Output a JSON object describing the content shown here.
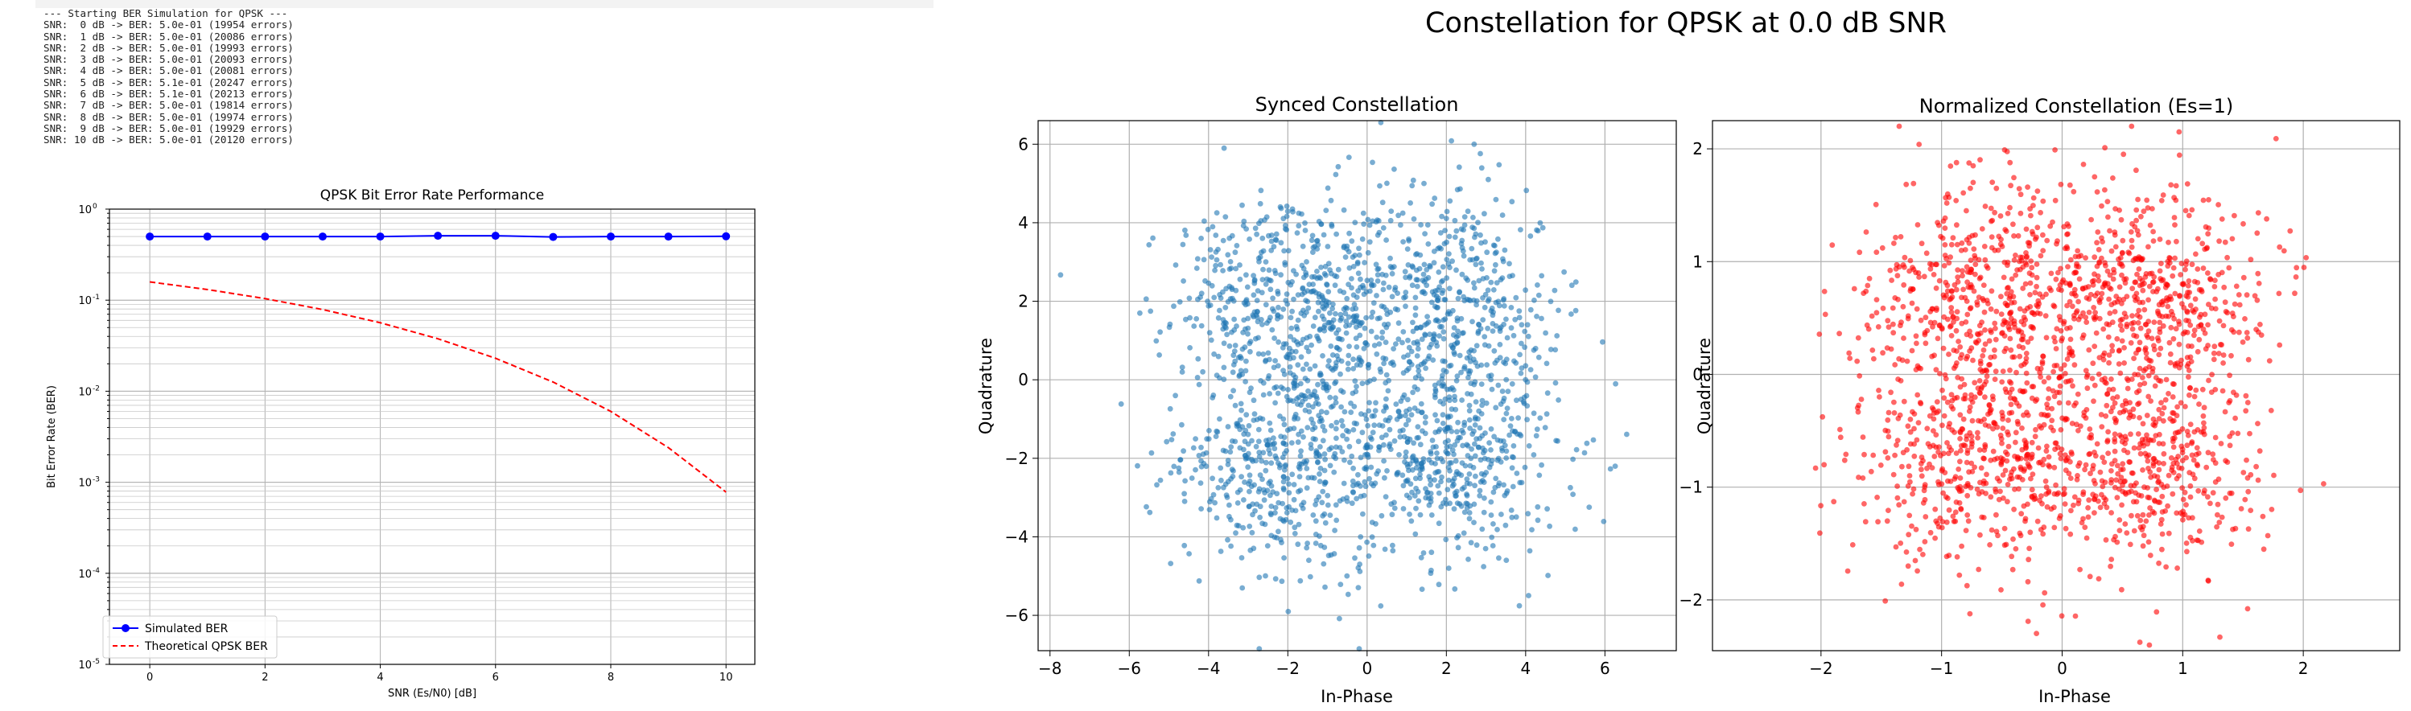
{
  "log": {
    "lines": [
      "--- Starting BER Simulation for QPSK ---",
      "SNR:  0 dB -> BER: 5.0e-01 (19954 errors)",
      "SNR:  1 dB -> BER: 5.0e-01 (20086 errors)",
      "SNR:  2 dB -> BER: 5.0e-01 (19993 errors)",
      "SNR:  3 dB -> BER: 5.0e-01 (20093 errors)",
      "SNR:  4 dB -> BER: 5.0e-01 (20081 errors)",
      "SNR:  5 dB -> BER: 5.1e-01 (20247 errors)",
      "SNR:  6 dB -> BER: 5.1e-01 (20213 errors)",
      "SNR:  7 dB -> BER: 5.0e-01 (19814 errors)",
      "SNR:  8 dB -> BER: 5.0e-01 (19974 errors)",
      "SNR:  9 dB -> BER: 5.0e-01 (19929 errors)",
      "SNR: 10 dB -> BER: 5.0e-01 (20120 errors)"
    ]
  },
  "figure_title": "Constellation for QPSK at 0.0 dB SNR",
  "chart_data": [
    {
      "type": "line",
      "title": "QPSK Bit Error Rate Performance",
      "xlabel": "SNR (Es/N0) [dB]",
      "ylabel": "Bit Error Rate (BER)",
      "xlim": [
        -0.7,
        10.5
      ],
      "ylim": [
        1e-05,
        1
      ],
      "yscale": "log",
      "xticks": [
        0,
        2,
        4,
        6,
        8,
        10
      ],
      "yticks": [
        1e-05,
        0.0001,
        0.001,
        0.01,
        0.1,
        1
      ],
      "ytick_labels": [
        [
          "10",
          "-5"
        ],
        [
          "10",
          "-4"
        ],
        [
          "10",
          "-3"
        ],
        [
          "10",
          "-2"
        ],
        [
          "10",
          "-1"
        ],
        [
          "10",
          "0"
        ]
      ],
      "grid": true,
      "legend_position": "lower-left",
      "x": [
        0,
        1,
        2,
        3,
        4,
        5,
        6,
        7,
        8,
        9,
        10
      ],
      "series": [
        {
          "name": "Simulated BER",
          "color": "#0000ff",
          "style": "solid-markers",
          "values": [
            0.5,
            0.5,
            0.5,
            0.5,
            0.5,
            0.51,
            0.51,
            0.495,
            0.5,
            0.5,
            0.503
          ]
        },
        {
          "name": "Theoretical QPSK BER",
          "color": "#ff0000",
          "style": "dashed",
          "values": [
            0.1587,
            0.1309,
            0.104,
            0.0789,
            0.0565,
            0.0377,
            0.023,
            0.0126,
            0.006,
            0.0024,
            0.00078
          ]
        }
      ]
    },
    {
      "type": "scatter",
      "title": "Synced Constellation",
      "xlabel": "In-Phase",
      "ylabel": "Quadrature",
      "xlim": [
        -8.3,
        7.8
      ],
      "ylim": [
        -6.9,
        6.6
      ],
      "xticks": [
        -8,
        -6,
        -4,
        -2,
        0,
        2,
        4,
        6
      ],
      "yticks": [
        -6,
        -4,
        -2,
        0,
        2,
        4,
        6
      ],
      "grid": true,
      "color": "#1f77b4",
      "points": {
        "count": 2000,
        "centers": [
          [
            2,
            2
          ],
          [
            -2,
            2
          ],
          [
            -2,
            -2
          ],
          [
            2,
            -2
          ]
        ],
        "sigma": 1.42,
        "outlier": [
          2.7,
          6.0
        ]
      }
    },
    {
      "type": "scatter",
      "title": "Normalized Constellation (Es=1)",
      "xlabel": "In-Phase",
      "ylabel": "Quadrature",
      "xlim": [
        -2.9,
        2.8
      ],
      "ylim": [
        -2.45,
        2.25
      ],
      "xticks": [
        -2,
        -1,
        0,
        1,
        2
      ],
      "yticks": [
        -2,
        -1,
        0,
        1,
        2
      ],
      "grid": true,
      "color": "#ff0000",
      "points": {
        "count": 2000,
        "centers": [
          [
            0.707,
            0.707
          ],
          [
            -0.707,
            0.707
          ],
          [
            -0.707,
            -0.707
          ],
          [
            0.707,
            -0.707
          ]
        ],
        "sigma": 0.5,
        "outlier": [
          0.97,
          2.15
        ]
      }
    }
  ]
}
